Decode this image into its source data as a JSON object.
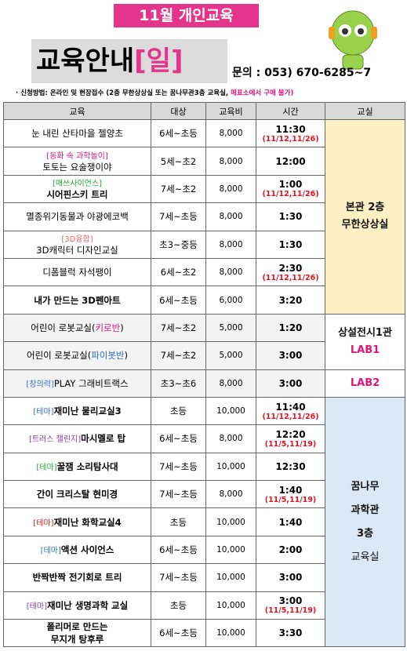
{
  "header": {
    "banner": "11월 개인교육",
    "title": "교육안내",
    "title_day": "[일]",
    "contact": "문의 : 053) 670-6285~7"
  },
  "note": "· 신청방법: 온라인 및 현장접수 (2층 무한상상실  또는 꿈나무관3층 교육실,",
  "note_warning": "매표소에서 구매 불가)",
  "table": {
    "columns": [
      "교육",
      "대상",
      "교육비",
      "시간",
      "교실"
    ],
    "rows": [
      {
        "title": "눈 내린 산타마을 젤양초",
        "target": "6세~초등",
        "fee": "8,000",
        "time": "11:30",
        "dates": "(11/12,11/26)"
      },
      {
        "tag": "[동화 속 과학놀이]",
        "tag_color": "#e0157a",
        "title": "토토는 요술쟁이야",
        "target": "5세~초2",
        "fee": "8,000",
        "time": "12:00"
      },
      {
        "tag": "[매쓰사이언스]",
        "tag_color": "#2aa13a",
        "title": "시어핀스키 트리",
        "bold": true,
        "target": "7세~초2",
        "fee": "8,000",
        "time": "1:00",
        "dates": "(11/12,11/26)"
      },
      {
        "title": "멸종위기동물과 야광에코백",
        "target": "7세~초등",
        "fee": "8,000",
        "time": "1:30"
      },
      {
        "tag": "[3D융합]",
        "tag_color": "#e86a6a",
        "title": "3D캐릭터 디자인교실",
        "target": "초3~중등",
        "fee": "8,000",
        "time": "1:30"
      },
      {
        "title": "디폼블럭 자석팽이",
        "target": "6세~초2",
        "fee": "8,000",
        "time": "2:30",
        "dates": "(11/12,11/26)"
      },
      {
        "title": "내가 만드는 3D펜아트",
        "bold": true,
        "target": "6세~초등",
        "fee": "6,000",
        "time": "3:20"
      },
      {
        "title": "어린이 로봇교실(",
        "title_suffix": "키로반",
        "suffix_color": "#e0157a",
        "title_end": ")",
        "target": "7세~초2",
        "fee": "5,000",
        "time": "1:20"
      },
      {
        "title": "어린이 로봇교실(",
        "title_suffix": "파이봇반",
        "suffix_color": "#2e6fc4",
        "title_end": ")",
        "target": "7세~초2",
        "fee": "5,000",
        "time": "3:00"
      },
      {
        "tag": "[창의력]",
        "tag_color": "#2e6fc4",
        "title": "PLAY 그래비트랙스",
        "target": "초3~초6",
        "fee": "8,000",
        "time": "3:00"
      },
      {
        "tag": "[테마]",
        "tag_color": "#2e6fc4",
        "title": "재미난 물리교실3",
        "bold": true,
        "target": "초등",
        "fee": "10,000",
        "time": "11:40",
        "dates": "(11/12,11/26)"
      },
      {
        "tag": "[트러스 챌린지]",
        "tag_color": "#8a3fa8",
        "title": "마시멜로 탑",
        "bold": true,
        "target": "6세~초등",
        "fee": "8,000",
        "time": "12:20",
        "dates": "(11/5,11/19)"
      },
      {
        "tag": "[테마]",
        "tag_color": "#2aa13a",
        "title": "꿀잼 소리탐사대",
        "bold": true,
        "target": "7세~초등",
        "fee": "10,000",
        "time": "12:30"
      },
      {
        "title": "간이 크리스탈 현미경",
        "bold": true,
        "target": "7세~초등",
        "fee": "8,000",
        "time": "1:40",
        "dates": "(11/5,11/19)"
      },
      {
        "tag": "[테마]",
        "tag_color": "#c81e1e",
        "title": "재미난 화학교실4",
        "bold": true,
        "target": "초등",
        "fee": "10,000",
        "time": "1:40"
      },
      {
        "tag": "[테마]",
        "tag_color": "#2e6fc4",
        "title": "액션 사이언스",
        "bold": true,
        "target": "6세~초등",
        "fee": "10,000",
        "time": "2:00"
      },
      {
        "title": "반짝반짝 전기회로 트리",
        "bold": true,
        "target": "7세~초등",
        "fee": "10,000",
        "time": "3:00"
      },
      {
        "tag": "[테마]",
        "tag_color": "#8a3fa8",
        "title": "재미난 생명과학 교실",
        "bold": true,
        "target": "초등",
        "fee": "10,000",
        "time": "3:00",
        "dates": "(11/5,11/19)"
      },
      {
        "title": "폴리머로 만드는",
        "title_line2": "무지개 탕후루",
        "bold": true,
        "target": "6세~초등",
        "fee": "10,000",
        "time": "3:30"
      }
    ],
    "rooms": [
      {
        "lines": [
          "본관 2층",
          "무한상상실"
        ],
        "bg": "#fdf0c4",
        "color": "#111"
      },
      {
        "lines": [
          "상설전시1관",
          "LAB1"
        ],
        "bg": "#ffffff",
        "color": "#111",
        "accent": "#e0157a"
      },
      {
        "lines": [
          "LAB2"
        ],
        "bg": "#ffffff",
        "color": "#e0157a"
      },
      {
        "lines": [
          "꿈나무",
          "과학관",
          "3층",
          "교육실"
        ],
        "bg": "#dbe8f6",
        "color": "#111"
      }
    ]
  }
}
